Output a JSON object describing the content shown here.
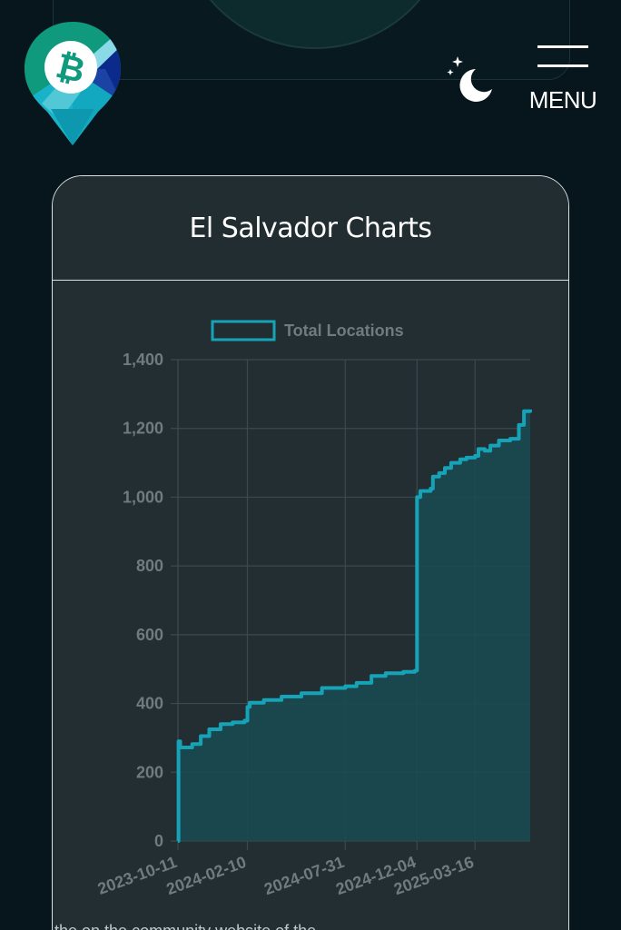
{
  "header": {
    "logo_icon": "bitcoin-cash-map-pin-logo",
    "theme_toggle_icon": "moon-stars-icon",
    "menu_icon": "hamburger-icon",
    "menu_label": "MENU"
  },
  "card": {
    "title": "El Salvador Charts"
  },
  "colors": {
    "background": "#06161c",
    "card": "#222e32",
    "accent": "#16a3b8",
    "area_fill": "#1a4a50",
    "grid": "#3b4a4e",
    "tick_text": "#6f7b7e"
  },
  "chart_data": {
    "type": "line",
    "title": "",
    "legend": [
      "Total Locations"
    ],
    "legend_position": "top",
    "xlabel": "",
    "ylabel": "",
    "ylim": [
      0,
      1400
    ],
    "y_ticks": [
      "0",
      "200",
      "400",
      "600",
      "800",
      "1,000",
      "1,200",
      "1,400"
    ],
    "y_tick_values": [
      0,
      200,
      400,
      600,
      800,
      1000,
      1200,
      1400
    ],
    "x_ticks": [
      "2023-10-11",
      "2024-02-10",
      "2024-07-31",
      "2024-12-04",
      "2025-03-16"
    ],
    "grid": true,
    "fill": true,
    "series": [
      {
        "name": "Total Locations",
        "x": [
          "2023-10-11",
          "2023-10-12",
          "2023-10-15",
          "2023-11-05",
          "2023-11-20",
          "2023-12-05",
          "2023-12-25",
          "2024-01-15",
          "2024-02-05",
          "2024-02-10",
          "2024-02-14",
          "2024-03-10",
          "2024-04-10",
          "2024-05-15",
          "2024-06-20",
          "2024-07-31",
          "2024-08-20",
          "2024-09-15",
          "2024-10-10",
          "2024-11-10",
          "2024-11-30",
          "2024-12-02",
          "2024-12-04",
          "2024-12-10",
          "2024-12-28",
          "2025-01-01",
          "2025-01-12",
          "2025-01-22",
          "2025-02-02",
          "2025-02-18",
          "2025-03-01",
          "2025-03-16",
          "2025-03-22",
          "2025-04-02",
          "2025-04-12",
          "2025-04-27",
          "2025-05-17",
          "2025-06-01",
          "2025-06-10",
          "2025-06-21"
        ],
        "values": [
          0,
          290,
          272,
          282,
          305,
          325,
          340,
          345,
          350,
          390,
          402,
          410,
          420,
          430,
          445,
          450,
          460,
          480,
          488,
          492,
          495,
          496,
          1000,
          1018,
          1025,
          1060,
          1070,
          1085,
          1100,
          1110,
          1115,
          1120,
          1140,
          1135,
          1150,
          1165,
          1170,
          1210,
          1250,
          1255
        ]
      }
    ]
  },
  "footer": {
    "partial_text": "the on the community website of the ..."
  }
}
